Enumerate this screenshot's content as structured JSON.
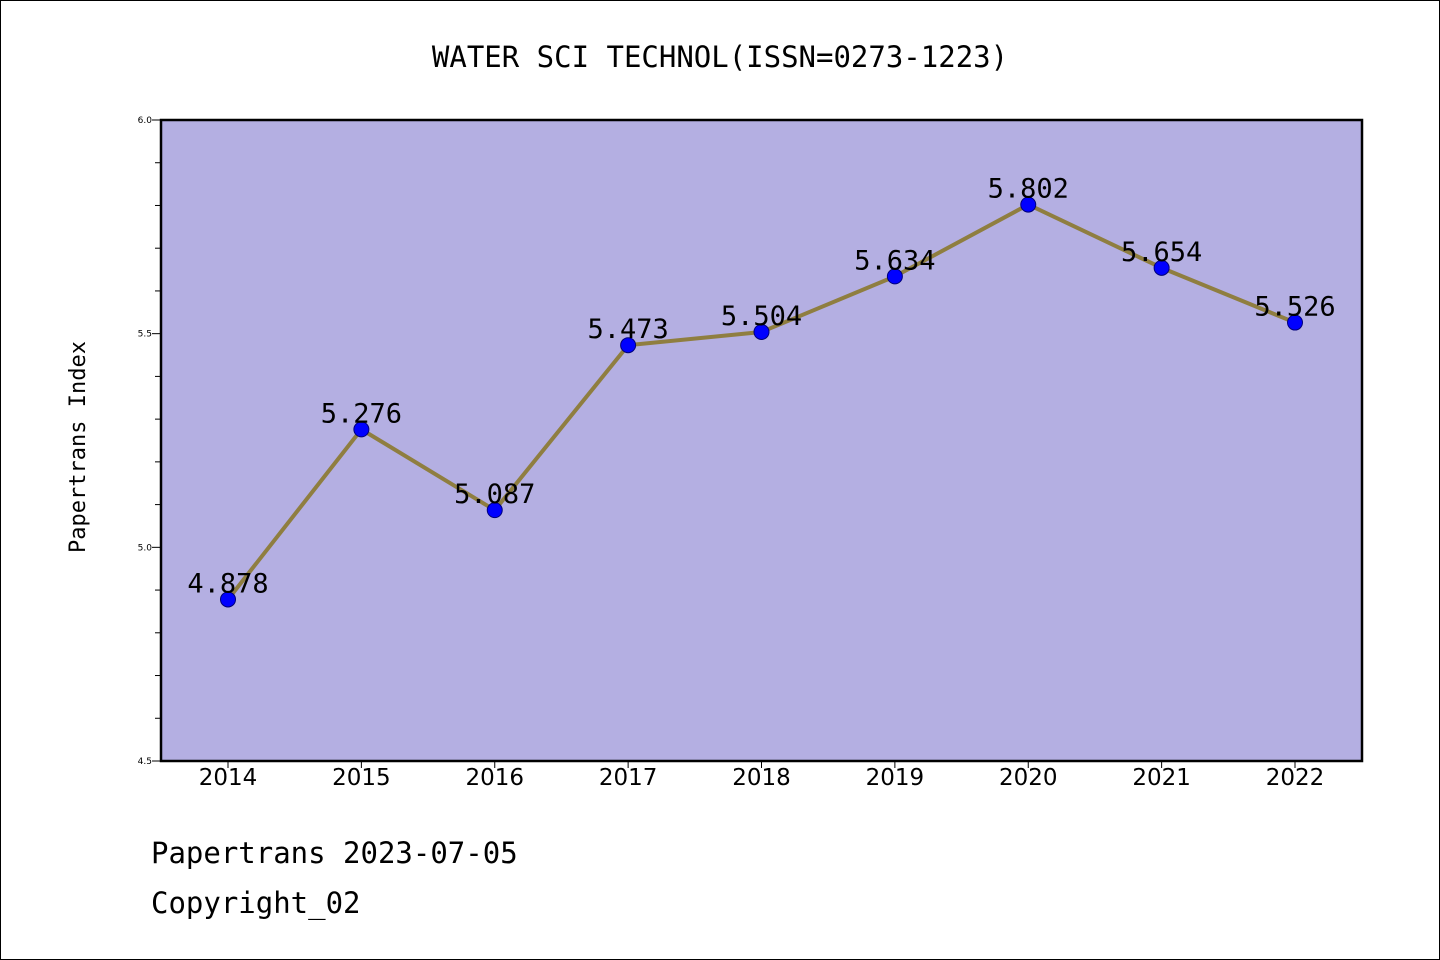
{
  "chart_data": {
    "type": "line",
    "title": "WATER SCI TECHNOL(ISSN=0273-1223)",
    "xlabel": "",
    "ylabel": "Papertrans Index",
    "categories": [
      "2014",
      "2015",
      "2016",
      "2017",
      "2018",
      "2019",
      "2020",
      "2021",
      "2022"
    ],
    "series": [
      {
        "values": [
          4.878,
          5.276,
          5.087,
          5.473,
          5.504,
          5.634,
          5.802,
          5.654,
          5.526
        ],
        "data_labels": [
          "4.878",
          "5.276",
          "5.087",
          "5.473",
          "5.504",
          "5.634",
          "5.802",
          "5.654",
          "5.526"
        ]
      }
    ],
    "ylim": [
      4.5,
      6.0
    ],
    "y_ticks": [
      4.5,
      5.0,
      5.5,
      6.0
    ],
    "y_tick_labels": [
      "4.5",
      "5.0",
      "5.5",
      "6.0"
    ],
    "grid": false,
    "legend": "none",
    "colors": {
      "plot_background": "#b4afe2",
      "line": "#8f7e40",
      "marker_fill": "#0000ff",
      "marker_edge": "#00007a",
      "axis": "#000000"
    }
  },
  "footer": {
    "date_line": "Papertrans 2023-07-05",
    "copyright": "Copyright_02"
  }
}
